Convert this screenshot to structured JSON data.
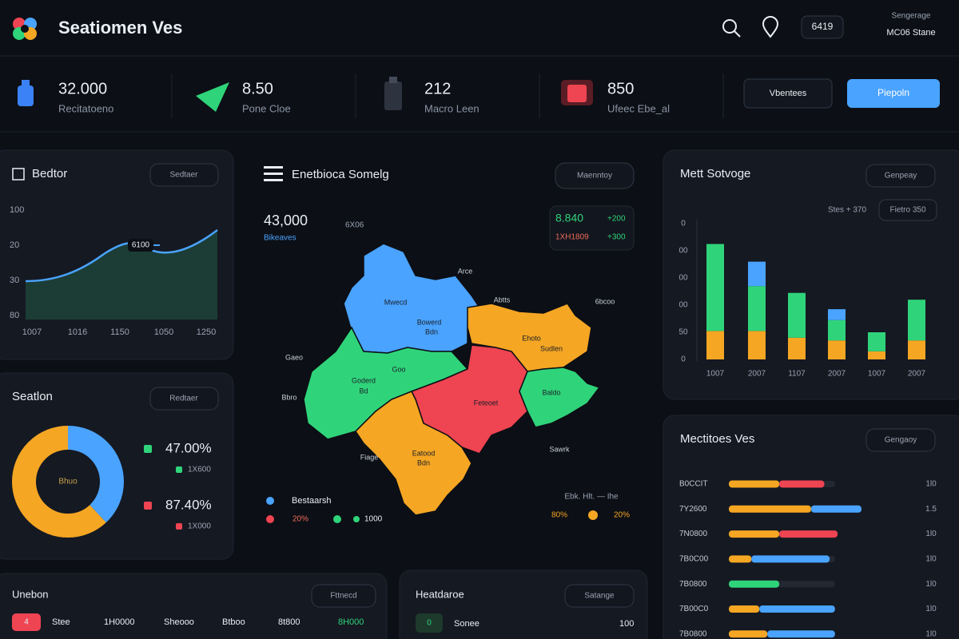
{
  "header": {
    "title": "Seatiomen Ves",
    "action": "6419",
    "user_top": "Sengerage",
    "user_bottom": "MC06 Stane"
  },
  "stats": [
    {
      "value": "32.000",
      "label": "Recitatoeno"
    },
    {
      "value": "8.50",
      "label": "Pone Cloe"
    },
    {
      "value": "212",
      "label": "Macro Leen"
    },
    {
      "value": "850",
      "label": "Ufeec Ebe_al"
    }
  ],
  "buttons": [
    "Vbentees",
    "Piepoln"
  ],
  "line_panel": {
    "title": "Bedtor",
    "button": "Sedtaer",
    "y_labels": [
      "100",
      "20",
      "30",
      "80"
    ],
    "x_labels": [
      "1007",
      "1016",
      "1150",
      "1050",
      "1250"
    ],
    "tooltip": "6100"
  },
  "donut_panel": {
    "title": "Seatlon",
    "button": "Redtaer",
    "center": "Bhuo",
    "segments": [
      {
        "color": "#4aa3ff",
        "value": 38
      },
      {
        "color": "#f5a623",
        "value": 62
      }
    ],
    "legend": [
      {
        "color": "#2fd47a",
        "value": "47.00%",
        "sub": "1X600"
      },
      {
        "color": "#ef4452",
        "value": "87.40%",
        "sub": "1X000"
      }
    ]
  },
  "map_panel": {
    "title": "Enetbioca Somelg",
    "button": "Maenntoy",
    "total": "43,000",
    "total_label": "Bikeaves",
    "note": "6X06",
    "box": [
      {
        "value": "8.840",
        "delta": "+200"
      },
      {
        "value": "1XH1809",
        "delta": "+300"
      }
    ],
    "regions": [
      "Arce",
      "Abtts",
      "6bcoo",
      "Mwecd",
      "Bowerd",
      "Bdn",
      "Ehoto",
      "Sudlen",
      "Gaeo",
      "Goderd",
      "Bd",
      "Goo",
      "Bbro",
      "Feteoet",
      "Baldo",
      "Sawrk",
      "Fiage",
      "Eatood",
      "Bdn"
    ],
    "legend": [
      "Bestaarsh",
      "20%",
      "1000"
    ],
    "footer": {
      "title": "Ebk. Hlt. — Ihe",
      "left": "80%",
      "right": "20%"
    }
  },
  "bar_panel": {
    "title": "Mett Sotvoge",
    "button": "Genpeay",
    "filter_label": "Stes + 370",
    "filter": "Fietro  350",
    "y_labels": [
      "0",
      "00",
      "00",
      "00",
      "50",
      "0"
    ],
    "x_labels": [
      "1007",
      "2007",
      "1107",
      "2007",
      "1007",
      "2007"
    ],
    "series": [
      {
        "color": "#f5a623",
        "values": [
          21,
          21,
          16,
          14,
          6,
          14
        ]
      },
      {
        "color": "#2fd47a",
        "values": [
          64,
          33,
          33,
          15,
          14,
          30
        ]
      },
      {
        "color": "#4aa3ff",
        "values": [
          0,
          18,
          0,
          8,
          0,
          0
        ]
      }
    ]
  },
  "progress_panel": {
    "title": "Mectitoes Ves",
    "button": "Gengaoy",
    "rows": [
      {
        "label": "B0CCIT",
        "value_label": "1l0",
        "segments": [
          {
            "color": "#f5a623",
            "value": 38
          },
          {
            "color": "#ef4452",
            "value": 34
          }
        ]
      },
      {
        "label": "7Y2600",
        "value_label": "1.5",
        "segments": [
          {
            "color": "#f5a623",
            "value": 62
          },
          {
            "color": "#4aa3ff",
            "value": 38
          }
        ]
      },
      {
        "label": "7N0800",
        "value_label": "1l0",
        "segments": [
          {
            "color": "#f5a623",
            "value": 38
          },
          {
            "color": "#ef4452",
            "value": 44
          }
        ]
      },
      {
        "label": "7B0C00",
        "value_label": "1l0",
        "segments": [
          {
            "color": "#f5a623",
            "value": 17
          },
          {
            "color": "#4aa3ff",
            "value": 59
          }
        ]
      },
      {
        "label": "7B0800",
        "value_label": "1l0",
        "segments": [
          {
            "color": "#2fd47a",
            "value": 38
          }
        ]
      },
      {
        "label": "7B00C0",
        "value_label": "1l0",
        "segments": [
          {
            "color": "#f5a623",
            "value": 23
          },
          {
            "color": "#4aa3ff",
            "value": 57
          }
        ]
      },
      {
        "label": "7B0800",
        "value_label": "1l0",
        "segments": [
          {
            "color": "#f5a623",
            "value": 29
          },
          {
            "color": "#4aa3ff",
            "value": 51
          }
        ]
      }
    ]
  },
  "bottom": [
    {
      "title": "Unebon",
      "button": "Fttnecd",
      "badge": "4",
      "items": [
        "Stee",
        "1H0000",
        "Sheooo",
        "Btboo",
        "8t800",
        "8H000"
      ]
    },
    {
      "title": "Heatdaroe",
      "button": "Satange",
      "badge": "0",
      "items": [
        "Sonee",
        "100"
      ]
    }
  ]
}
